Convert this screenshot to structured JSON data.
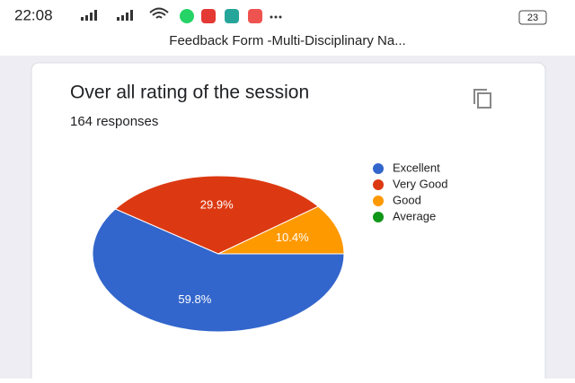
{
  "status_bar": {
    "time": "22:08",
    "battery": "23"
  },
  "page_title": "Feedback Form -Multi-Disciplinary Na...",
  "chart_data": {
    "type": "pie",
    "title": "Over all rating of the session",
    "subtitle": "164 responses",
    "categories": [
      "Excellent",
      "Very Good",
      "Good",
      "Average"
    ],
    "values": [
      59.8,
      29.9,
      10.4,
      0
    ],
    "value_labels": [
      "59.8%",
      "29.9%",
      "10.4%",
      null
    ],
    "colors": [
      "#3366cc",
      "#dc3912",
      "#ff9900",
      "#109618"
    ],
    "legend": "right"
  }
}
